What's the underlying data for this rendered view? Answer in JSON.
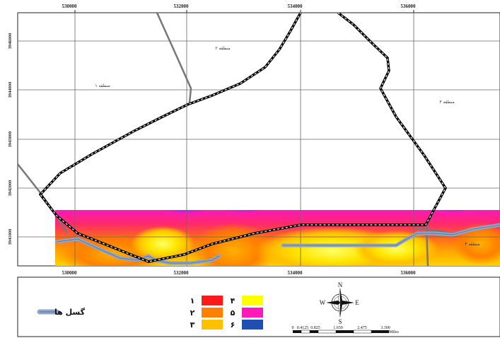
{
  "map": {
    "x_ticks_top": [
      "530000",
      "532000",
      "534000",
      "536000"
    ],
    "x_ticks_bottom": [
      "530000",
      "532000",
      "534000",
      "536000"
    ],
    "y_ticks": [
      "3946000",
      "3944000",
      "3943000",
      "3942000",
      "3941000"
    ],
    "zone_labels": [
      "منطقه ۲",
      "منطقه ۱",
      "منطقه ۳",
      "منطقه ۴"
    ]
  },
  "legend": {
    "fault_label": "گسل ها",
    "classes": [
      {
        "label": "۱",
        "color": "#ff1a1a"
      },
      {
        "label": "۲",
        "color": "#ff8000"
      },
      {
        "label": "۳",
        "color": "#ffc000"
      },
      {
        "label": "۴",
        "color": "#ffff00"
      },
      {
        "label": "۵",
        "color": "#ff19b8"
      },
      {
        "label": "۶",
        "color": "#1f4fb3"
      }
    ],
    "fault_color": "#8da6c9"
  },
  "compass": {
    "n": "N",
    "s": "S",
    "e": "E",
    "w": "W"
  },
  "scale_bar": {
    "labels": [
      "0",
      "0.4125",
      "0.825",
      "1.650",
      "2.475",
      "3.300"
    ],
    "unit": "Miles"
  }
}
